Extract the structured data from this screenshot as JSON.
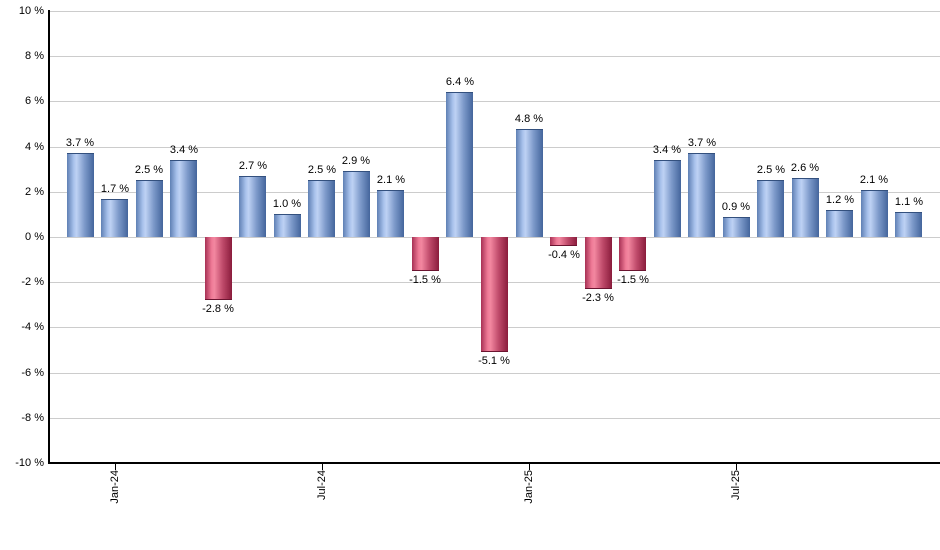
{
  "chart_data": {
    "type": "bar",
    "title": "",
    "xlabel": "",
    "ylabel": "",
    "ylim": [
      -10,
      10
    ],
    "y_grid_step": 2,
    "grid": true,
    "legend": false,
    "y_axis_tick_labels": [
      "10 %",
      "8 %",
      "6 %",
      "4 %",
      "2 %",
      "0 %",
      "-2 %",
      "-4 %",
      "-6 %",
      "-8 %",
      "-10 %"
    ],
    "y_axis_tick_values": [
      10,
      8,
      6,
      4,
      2,
      0,
      -2,
      -4,
      -6,
      -8,
      -10
    ],
    "x_axis_ticks": [
      {
        "label": "Jan-24",
        "bar_index": 1
      },
      {
        "label": "Jul-24",
        "bar_index": 7
      },
      {
        "label": "Jan-25",
        "bar_index": 13
      },
      {
        "label": "Jul-25",
        "bar_index": 19
      }
    ],
    "bars": [
      {
        "value": 3.7,
        "label": "3.7 %"
      },
      {
        "value": 1.7,
        "label": "1.7 %"
      },
      {
        "value": 2.5,
        "label": "2.5 %"
      },
      {
        "value": 3.4,
        "label": "3.4 %"
      },
      {
        "value": -2.8,
        "label": "-2.8 %"
      },
      {
        "value": 2.7,
        "label": "2.7 %"
      },
      {
        "value": 1.0,
        "label": "1.0 %"
      },
      {
        "value": 2.5,
        "label": "2.5 %"
      },
      {
        "value": 2.9,
        "label": "2.9 %"
      },
      {
        "value": 2.1,
        "label": "2.1 %"
      },
      {
        "value": -1.5,
        "label": "-1.5 %"
      },
      {
        "value": 6.4,
        "label": "6.4 %"
      },
      {
        "value": -5.1,
        "label": "-5.1 %"
      },
      {
        "value": 4.8,
        "label": "4.8 %"
      },
      {
        "value": -0.4,
        "label": "-0.4 %"
      },
      {
        "value": -2.3,
        "label": "-2.3 %"
      },
      {
        "value": -1.5,
        "label": "-1.5 %"
      },
      {
        "value": 3.4,
        "label": "3.4 %"
      },
      {
        "value": 3.7,
        "label": "3.7 %"
      },
      {
        "value": 0.9,
        "label": "0.9 %"
      },
      {
        "value": 2.5,
        "label": "2.5 %"
      },
      {
        "value": 2.6,
        "label": "2.6 %"
      },
      {
        "value": 1.2,
        "label": "1.2 %"
      },
      {
        "value": 2.1,
        "label": "2.1 %"
      },
      {
        "value": 1.1,
        "label": "1.1 %"
      }
    ],
    "colors": {
      "positive_bar_edge": "#44659c",
      "positive_bar_highlight": "#bed2f4",
      "negative_bar_edge": "#8a1c3c",
      "negative_bar_highlight": "#f287a0",
      "gridline": "#cccccc",
      "axis": "#000000",
      "background": "#ffffff",
      "label_text": "#000000"
    }
  }
}
